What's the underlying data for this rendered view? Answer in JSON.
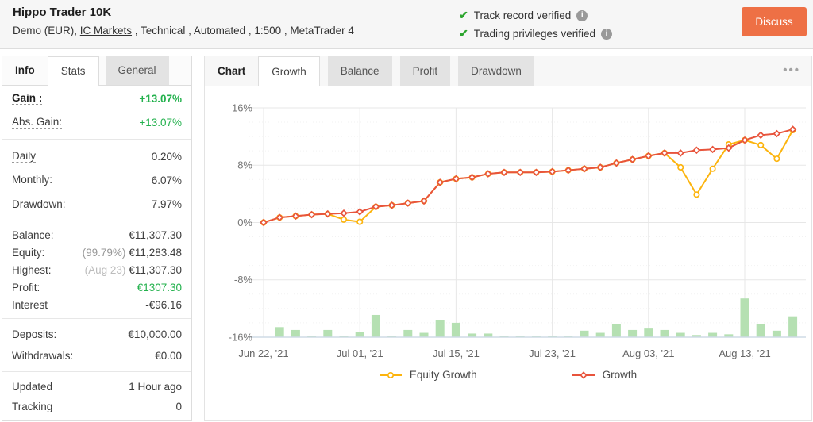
{
  "header": {
    "title": "Hippo Trader 10K",
    "subtitle": {
      "prefix": "Demo (EUR), ",
      "link": "IC Markets",
      "suffix": " , Technical , Automated , 1:500 , MetaTrader 4"
    },
    "verifications": [
      "Track record verified",
      "Trading privileges verified"
    ],
    "discuss_label": "Discuss"
  },
  "icons": {
    "check": "✔",
    "info": "i",
    "ellipsis": "•••"
  },
  "colors": {
    "accent_green_text": "#23b14d",
    "check_green": "#2ca52e",
    "discuss_orange": "#ee7045",
    "growth_red": "#e8543c",
    "equity_yellow": "#fcb40e",
    "bars_green": "#b5e0b2"
  },
  "left_panel": {
    "tabs": [
      {
        "label": "Info",
        "state": "plain"
      },
      {
        "label": "Stats",
        "state": "active"
      },
      {
        "label": "General",
        "state": "inactive"
      }
    ],
    "groups": [
      {
        "rows": [
          {
            "label": "Gain :",
            "value": "+13.07%",
            "label_bold": true,
            "label_dotted": true,
            "value_green": true,
            "value_bold": true
          },
          {
            "label": "Abs. Gain:",
            "value": "+13.07%",
            "label_dotted": true,
            "value_green": true
          }
        ]
      },
      {
        "rows": [
          {
            "label": "Daily",
            "value": "0.20%",
            "label_dotted": true
          },
          {
            "label": "Monthly:",
            "value": "6.07%",
            "label_dotted": true
          },
          {
            "label": "Drawdown:",
            "value": "7.97%"
          }
        ]
      },
      {
        "rows": [
          {
            "label": "Balance:",
            "value": "€11,307.30"
          },
          {
            "label": "Equity:",
            "note": "(99.79%)",
            "value": "€11,283.48"
          },
          {
            "label": "Highest:",
            "note": "(Aug 23)",
            "note_light": true,
            "value": "€11,307.30"
          },
          {
            "label": "Profit:",
            "value": "€1307.30",
            "value_green": true
          },
          {
            "label": "Interest",
            "value": "-€96.16"
          }
        ]
      },
      {
        "rows": [
          {
            "label": "Deposits:",
            "value": "€10,000.00"
          },
          {
            "label": "Withdrawals:",
            "value": "€0.00"
          }
        ]
      },
      {
        "rows": [
          {
            "label": "Updated",
            "value": "1 Hour ago"
          },
          {
            "label": "Tracking",
            "value": "0"
          }
        ]
      }
    ]
  },
  "chart_panel": {
    "tabs": [
      {
        "label": "Chart",
        "state": "plain"
      },
      {
        "label": "Growth",
        "state": "active"
      },
      {
        "label": "Balance",
        "state": "inactive"
      },
      {
        "label": "Profit",
        "state": "inactive"
      },
      {
        "label": "Drawdown",
        "state": "inactive"
      }
    ]
  },
  "chart_data": {
    "type": "line",
    "title": "",
    "xlabel": "",
    "ylabel": "",
    "grid": true,
    "legend_position": "bottom",
    "ylim": [
      -16,
      16
    ],
    "y_ticks": [
      16,
      8,
      0,
      -8,
      -16
    ],
    "y_tick_labels": [
      "16%",
      "8%",
      "0%",
      "-8%",
      "-16%"
    ],
    "x_tick_indices": [
      0,
      6,
      12,
      18,
      24,
      30
    ],
    "x_tick_labels": [
      "Jun 22, '21",
      "Jul 01, '21",
      "Jul 15, '21",
      "Jul 23, '21",
      "Aug 03, '21",
      "Aug 13, '21"
    ],
    "series": [
      {
        "name": "Equity Growth",
        "color": "#fcb40e",
        "marker": "circle",
        "values": [
          0.0,
          0.7,
          0.9,
          1.1,
          1.2,
          0.4,
          0.1,
          2.2,
          2.4,
          2.7,
          3.0,
          5.6,
          6.1,
          6.3,
          6.8,
          7.0,
          7.0,
          7.0,
          7.1,
          7.3,
          7.5,
          7.7,
          8.3,
          8.8,
          9.3,
          9.7,
          7.7,
          3.9,
          7.5,
          10.9,
          11.5,
          10.8,
          8.9,
          12.9
        ]
      },
      {
        "name": "Growth",
        "color": "#e8543c",
        "marker": "diamond",
        "values": [
          0.0,
          0.7,
          0.9,
          1.1,
          1.2,
          1.3,
          1.5,
          2.2,
          2.4,
          2.7,
          3.0,
          5.6,
          6.1,
          6.3,
          6.8,
          7.0,
          7.0,
          7.0,
          7.1,
          7.3,
          7.5,
          7.7,
          8.3,
          8.8,
          9.3,
          9.7,
          9.7,
          10.1,
          10.2,
          10.4,
          11.5,
          12.2,
          12.4,
          13.0
        ]
      }
    ],
    "bars": {
      "name": "daily-activity",
      "color": "#b5e0b2",
      "baseline": -16,
      "values": [
        0,
        1.4,
        1.0,
        0.2,
        1.0,
        0.2,
        0.7,
        3.1,
        0.2,
        1.0,
        0.6,
        2.4,
        2.0,
        0.5,
        0.5,
        0.2,
        0.2,
        0.1,
        0.2,
        0.1,
        0.9,
        0.6,
        1.8,
        1.0,
        1.2,
        1.0,
        0.6,
        0.3,
        0.6,
        0.4,
        5.4,
        1.8,
        0.9,
        2.8
      ]
    }
  }
}
